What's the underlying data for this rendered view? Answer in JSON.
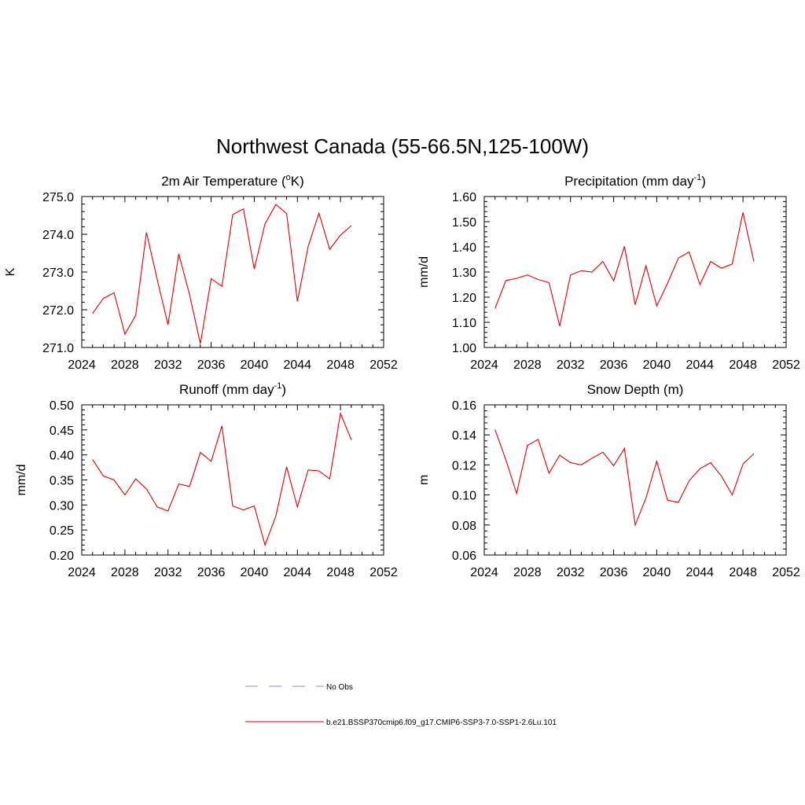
{
  "figure_title": "Northwest Canada (55-66.5N,125-100W)",
  "colors": {
    "model": "#e00000",
    "obs": "#9aa0e0",
    "axis": "#000000"
  },
  "legend": {
    "obs_label": "No Obs",
    "model_label": "b.e21.BSSP370cmip6.f09_g17.CMIP6-SSP3-7.0-SSP1-2.6Lu.101"
  },
  "chart_data": [
    {
      "type": "line",
      "title": "2m Air Temperature (",
      "title_sup": "o",
      "title_tail": "K)",
      "ylabel": "K",
      "xlim": [
        2024,
        2052
      ],
      "ylim": [
        271.0,
        275.0
      ],
      "x_ticks": [
        2024,
        2028,
        2032,
        2036,
        2040,
        2044,
        2048,
        2052
      ],
      "y_ticks": [
        "271.0",
        "272.0",
        "273.0",
        "274.0",
        "275.0"
      ],
      "x": [
        2025,
        2026,
        2027,
        2028,
        2029,
        2030,
        2031,
        2032,
        2033,
        2034,
        2035,
        2036,
        2037,
        2038,
        2039,
        2040,
        2041,
        2042,
        2043,
        2044,
        2045,
        2046,
        2047,
        2048,
        2049
      ],
      "series": [
        {
          "values": [
            271.9,
            272.3,
            272.45,
            271.35,
            271.85,
            274.05,
            272.8,
            271.6,
            273.48,
            272.4,
            271.1,
            272.82,
            272.62,
            274.52,
            274.67,
            273.08,
            274.28,
            274.79,
            274.55,
            272.22,
            273.68,
            274.56,
            273.6,
            273.98,
            274.23
          ]
        }
      ]
    },
    {
      "type": "line",
      "title": "Precipitation (mm day",
      "title_sup": "-1",
      "title_tail": ")",
      "ylabel": "mm/d",
      "xlim": [
        2024,
        2052
      ],
      "ylim": [
        1.0,
        1.6
      ],
      "x_ticks": [
        2024,
        2028,
        2032,
        2036,
        2040,
        2044,
        2048,
        2052
      ],
      "y_ticks": [
        "1.00",
        "1.10",
        "1.20",
        "1.30",
        "1.40",
        "1.50",
        "1.60"
      ],
      "x": [
        2025,
        2026,
        2027,
        2028,
        2029,
        2030,
        2031,
        2032,
        2033,
        2034,
        2035,
        2036,
        2037,
        2038,
        2039,
        2040,
        2041,
        2042,
        2043,
        2044,
        2045,
        2046,
        2047,
        2048,
        2049
      ],
      "series": [
        {
          "values": [
            1.155,
            1.266,
            1.275,
            1.288,
            1.27,
            1.258,
            1.085,
            1.288,
            1.305,
            1.3,
            1.342,
            1.265,
            1.402,
            1.17,
            1.325,
            1.165,
            1.255,
            1.355,
            1.38,
            1.25,
            1.342,
            1.315,
            1.332,
            1.537,
            1.342
          ]
        }
      ]
    },
    {
      "type": "line",
      "title": "Runoff (mm day",
      "title_sup": "-1",
      "title_tail": ")",
      "ylabel": "mm/d",
      "xlim": [
        2024,
        2052
      ],
      "ylim": [
        0.2,
        0.5
      ],
      "x_ticks": [
        2024,
        2028,
        2032,
        2036,
        2040,
        2044,
        2048,
        2052
      ],
      "y_ticks": [
        "0.20",
        "0.25",
        "0.30",
        "0.35",
        "0.40",
        "0.45",
        "0.50"
      ],
      "x": [
        2025,
        2026,
        2027,
        2028,
        2029,
        2030,
        2031,
        2032,
        2033,
        2034,
        2035,
        2036,
        2037,
        2038,
        2039,
        2040,
        2041,
        2042,
        2043,
        2044,
        2045,
        2046,
        2047,
        2048,
        2049
      ],
      "series": [
        {
          "values": [
            0.391,
            0.358,
            0.35,
            0.32,
            0.352,
            0.332,
            0.296,
            0.288,
            0.342,
            0.337,
            0.405,
            0.387,
            0.458,
            0.298,
            0.29,
            0.298,
            0.22,
            0.278,
            0.376,
            0.296,
            0.37,
            0.368,
            0.352,
            0.483,
            0.43
          ]
        }
      ]
    },
    {
      "type": "line",
      "title": "Snow Depth (m)",
      "title_sup": "",
      "title_tail": "",
      "ylabel": "m",
      "xlim": [
        2024,
        2052
      ],
      "ylim": [
        0.06,
        0.16
      ],
      "x_ticks": [
        2024,
        2028,
        2032,
        2036,
        2040,
        2044,
        2048,
        2052
      ],
      "y_ticks": [
        "0.06",
        "0.08",
        "0.10",
        "0.12",
        "0.14",
        "0.16"
      ],
      "x": [
        2025,
        2026,
        2027,
        2028,
        2029,
        2030,
        2031,
        2032,
        2033,
        2034,
        2035,
        2036,
        2037,
        2038,
        2039,
        2040,
        2041,
        2042,
        2043,
        2044,
        2045,
        2046,
        2047,
        2048,
        2049
      ],
      "series": [
        {
          "values": [
            0.1435,
            0.1235,
            0.101,
            0.133,
            0.137,
            0.1145,
            0.1265,
            0.1215,
            0.12,
            0.1245,
            0.1285,
            0.1195,
            0.131,
            0.08,
            0.098,
            0.1225,
            0.0965,
            0.095,
            0.1095,
            0.1175,
            0.1215,
            0.1125,
            0.1,
            0.1205,
            0.1275
          ]
        }
      ]
    }
  ]
}
